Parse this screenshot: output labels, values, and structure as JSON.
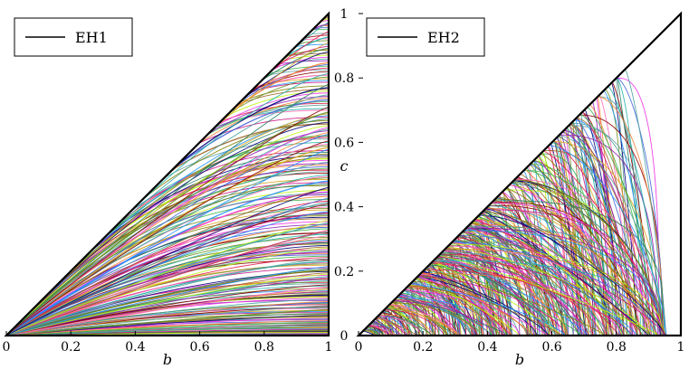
{
  "chart_data": [
    {
      "type": "line",
      "panel": "left",
      "xlabel": "b",
      "ylabel": "",
      "xlim": [
        0,
        1
      ],
      "ylim": [
        0,
        1
      ],
      "xticks": [
        "0",
        "0.2",
        "0.4",
        "0.6",
        "0.8",
        "1"
      ],
      "legend": {
        "label": "EH1",
        "placement": "top-left"
      },
      "boundary": {
        "type": "triangle",
        "vertices": [
          [
            0,
            0
          ],
          [
            1,
            1
          ],
          [
            1,
            0
          ]
        ]
      },
      "curve_family": {
        "description_visible": false,
        "shape": "concave curves from origin to right edge",
        "end_heights_at_b1": "dense from 0 to 1"
      }
    },
    {
      "type": "line",
      "panel": "right",
      "xlabel": "b",
      "ylabel": "c",
      "xlim": [
        0,
        1
      ],
      "ylim": [
        0,
        1
      ],
      "xticks": [
        "0",
        "0.2",
        "0.4",
        "0.6",
        "0.8",
        "1"
      ],
      "yticks": [
        "0",
        "0.2",
        "0.4",
        "0.6",
        "0.8",
        "1"
      ],
      "legend": {
        "label": "EH2",
        "placement": "top-left"
      },
      "boundary": {
        "type": "triangle",
        "vertices": [
          [
            0,
            0
          ],
          [
            1,
            1
          ],
          [
            1,
            0
          ]
        ]
      },
      "curve_family": {
        "shape": "arcs from diagonal c=b down to c=0",
        "roots": [
          0.25,
          0.5,
          0.667,
          0.75,
          0.8,
          0.833,
          0.857,
          0.875,
          0.889,
          0.9
        ]
      }
    }
  ],
  "colors": {
    "axis": "#000000",
    "palette": [
      "#e6194b",
      "#3cb44b",
      "#4363d8",
      "#f58231",
      "#911eb4",
      "#46a0a0",
      "#f032e6",
      "#bcf60c",
      "#9a6324",
      "#000075",
      "#808000",
      "#2a7f62",
      "#c71585",
      "#1e90ff",
      "#daa520",
      "#6b8e23",
      "#ff69b4",
      "#20b2aa",
      "#8b0000",
      "#5f9ea0"
    ]
  }
}
